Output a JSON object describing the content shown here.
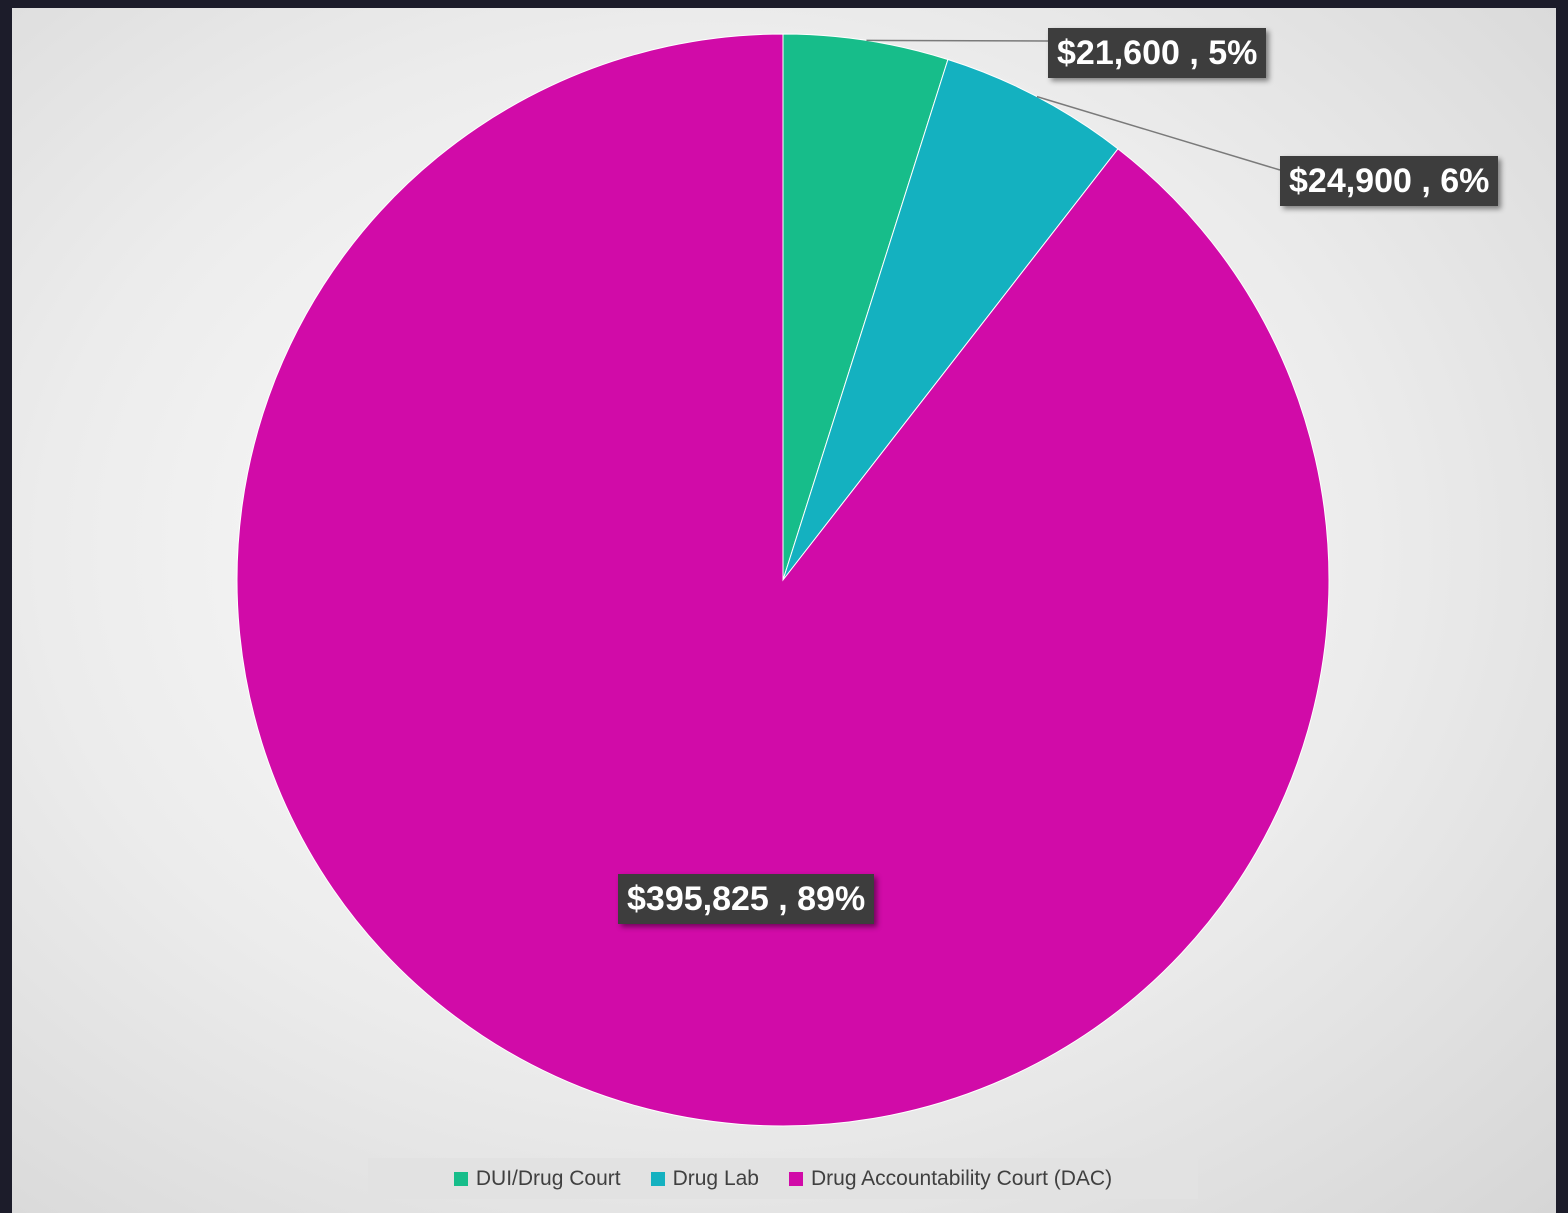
{
  "chart_data": {
    "type": "pie",
    "title": "",
    "start_angle_deg": 0,
    "direction": "clockwise",
    "slices": [
      {
        "name": "DUI/Drug Court",
        "value": 21600,
        "percent": 5,
        "label": "$21,600 , 5%",
        "color": "#17bd8a"
      },
      {
        "name": "Drug Lab",
        "value": 24900,
        "percent": 6,
        "label": "$24,900 , 6%",
        "color": "#14b1c0"
      },
      {
        "name": "Drug Accountability Court (DAC)",
        "value": 395825,
        "percent": 89,
        "label": "$395,825 , 89%",
        "color": "#d10ba8"
      }
    ],
    "legend_position": "bottom"
  }
}
